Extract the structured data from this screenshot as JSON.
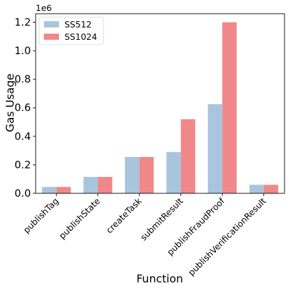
{
  "chart_data": {
    "type": "bar",
    "xlabel": "Function",
    "ylabel": "Gas Usage",
    "y_offset_label": "1e6",
    "ylim": [
      0,
      1.26
    ],
    "yticks": [
      "0.0",
      "0.2",
      "0.4",
      "0.6",
      "0.8",
      "1.0",
      "1.2"
    ],
    "categories": [
      "publishTag",
      "publishState",
      "createTask",
      "submitResult",
      "publishFraudProof",
      "publishVerificationResult"
    ],
    "series": [
      {
        "name": "SS512",
        "color": "#a9c4dd",
        "values": [
          0.045,
          0.115,
          0.255,
          0.29,
          0.625,
          0.06
        ]
      },
      {
        "name": "SS1024",
        "color": "#f0888a",
        "values": [
          0.045,
          0.115,
          0.255,
          0.52,
          1.2,
          0.06
        ]
      }
    ],
    "legend_position": "top-left",
    "grid": false
  }
}
